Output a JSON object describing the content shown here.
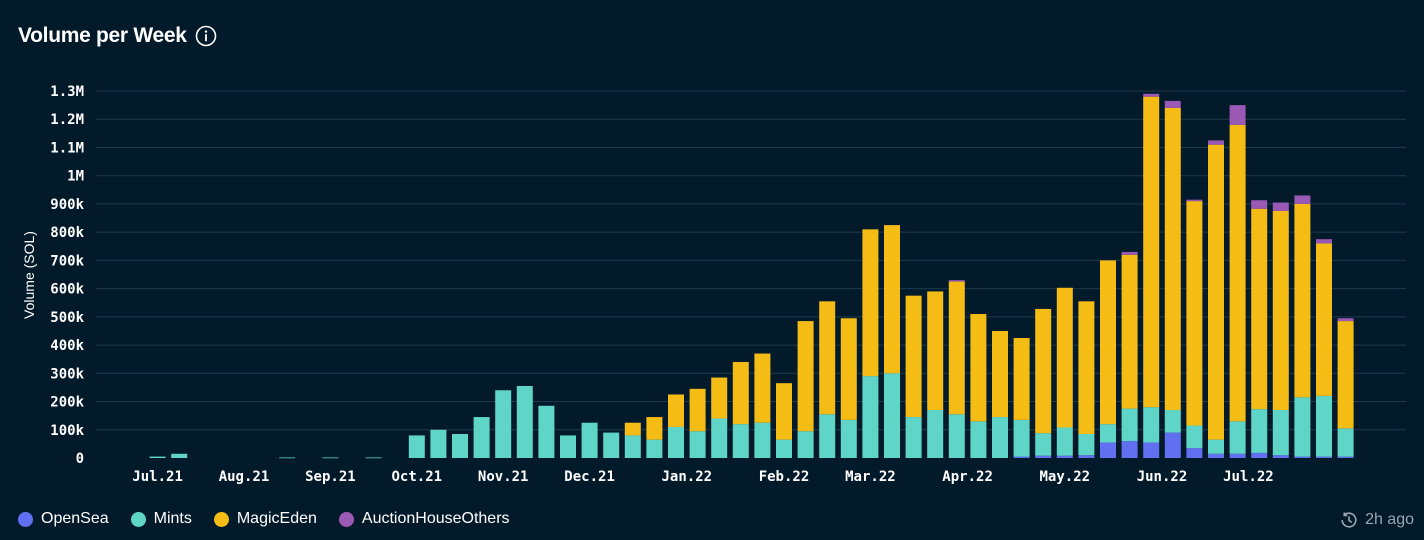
{
  "header": {
    "title": "Volume per Week",
    "info_icon": "info-icon"
  },
  "footer": {
    "updated": "2h ago",
    "clock_icon": "history-clock-icon"
  },
  "chart_data": {
    "type": "bar",
    "stacked": true,
    "title": "Volume per Week",
    "xlabel": "",
    "ylabel": "Volume (SOL)",
    "ylim": [
      0,
      1300000
    ],
    "yticks": [
      0,
      100000,
      200000,
      300000,
      400000,
      500000,
      600000,
      700000,
      800000,
      900000,
      1000000,
      1100000,
      1200000,
      1300000
    ],
    "ytick_labels": [
      "0",
      "100k",
      "200k",
      "300k",
      "400k",
      "500k",
      "600k",
      "700k",
      "800k",
      "900k",
      "1M",
      "1.1M",
      "1.2M",
      "1.3M"
    ],
    "grid": true,
    "legend_position": "bottom-left",
    "x_tick_labels": [
      {
        "label": "Jul.21",
        "index": 2
      },
      {
        "label": "Aug.21",
        "index": 6
      },
      {
        "label": "Sep.21",
        "index": 10
      },
      {
        "label": "Oct.21",
        "index": 14
      },
      {
        "label": "Nov.21",
        "index": 18
      },
      {
        "label": "Dec.21",
        "index": 22
      },
      {
        "label": "Jan.22",
        "index": 26.5
      },
      {
        "label": "Feb.22",
        "index": 31
      },
      {
        "label": "Mar.22",
        "index": 35
      },
      {
        "label": "Apr.22",
        "index": 39.5
      },
      {
        "label": "May.22",
        "index": 44
      },
      {
        "label": "Jun.22",
        "index": 48.5
      },
      {
        "label": "Jul.22",
        "index": 52.5
      }
    ],
    "bar_count": 58,
    "series": [
      {
        "name": "OpenSea",
        "color": "#6070f0",
        "values": [
          0,
          0,
          0,
          0,
          0,
          0,
          0,
          0,
          0,
          0,
          0,
          0,
          0,
          0,
          0,
          0,
          0,
          0,
          0,
          0,
          0,
          0,
          0,
          0,
          0,
          0,
          0,
          0,
          0,
          0,
          0,
          0,
          0,
          0,
          0,
          0,
          0,
          0,
          0,
          0,
          0,
          0,
          5000,
          8000,
          8000,
          10000,
          55000,
          60000,
          55000,
          90000,
          35000,
          15000,
          15000,
          18000,
          10000,
          5000,
          5000,
          5000
        ]
      },
      {
        "name": "Mints",
        "color": "#5fd5c7",
        "values": [
          0,
          0,
          5000,
          15000,
          0,
          0,
          0,
          0,
          2000,
          0,
          2000,
          0,
          2000,
          0,
          80000,
          100000,
          85000,
          145000,
          240000,
          255000,
          185000,
          80000,
          125000,
          90000,
          80000,
          65000,
          110000,
          95000,
          140000,
          120000,
          125000,
          65000,
          95000,
          155000,
          135000,
          290000,
          300000,
          145000,
          170000,
          155000,
          130000,
          145000,
          130000,
          80000,
          100000,
          75000,
          65000,
          115000,
          125000,
          80000,
          80000,
          50000,
          115000,
          155000,
          160000,
          210000,
          215000,
          100000
        ]
      },
      {
        "name": "MagicEden",
        "color": "#f5bc16",
        "values": [
          0,
          0,
          0,
          0,
          0,
          0,
          0,
          0,
          0,
          0,
          0,
          0,
          0,
          0,
          0,
          0,
          0,
          0,
          0,
          0,
          0,
          0,
          0,
          0,
          45000,
          80000,
          115000,
          150000,
          145000,
          220000,
          245000,
          200000,
          390000,
          400000,
          360000,
          520000,
          525000,
          430000,
          420000,
          470000,
          380000,
          305000,
          290000,
          440000,
          495000,
          470000,
          580000,
          545000,
          1100000,
          1070000,
          795000,
          1045000,
          1050000,
          710000,
          705000,
          685000,
          540000,
          380000
        ]
      },
      {
        "name": "AuctionHouseOthers",
        "color": "#9b59b6",
        "values": [
          0,
          0,
          0,
          0,
          0,
          0,
          0,
          0,
          0,
          0,
          0,
          0,
          0,
          0,
          0,
          0,
          0,
          0,
          0,
          0,
          0,
          0,
          0,
          0,
          0,
          0,
          0,
          0,
          0,
          0,
          0,
          0,
          0,
          0,
          0,
          0,
          0,
          0,
          0,
          5000,
          0,
          0,
          0,
          0,
          0,
          0,
          0,
          10000,
          10000,
          25000,
          5000,
          15000,
          70000,
          30000,
          30000,
          30000,
          15000,
          10000
        ]
      }
    ]
  }
}
